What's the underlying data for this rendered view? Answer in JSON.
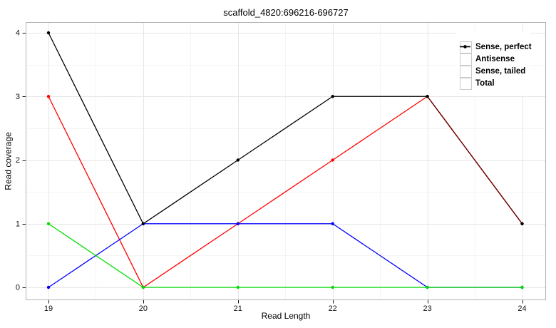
{
  "chart_data": {
    "type": "line",
    "title": "scaffold_4820:696216-696727",
    "xlabel": "Read Length",
    "ylabel": "Read coverage",
    "x": [
      19,
      20,
      21,
      22,
      23,
      24
    ],
    "series": [
      {
        "name": "Sense, perfect",
        "color": "#ff0000",
        "values": [
          3,
          0,
          1,
          2,
          3,
          1
        ]
      },
      {
        "name": "Antisense",
        "color": "#0000ff",
        "values": [
          0,
          1,
          1,
          1,
          0,
          0
        ]
      },
      {
        "name": "Sense, tailed",
        "color": "#00dd00",
        "values": [
          1,
          0,
          0,
          0,
          0,
          0
        ]
      },
      {
        "name": "Total",
        "color": "#000000",
        "values": [
          4,
          1,
          2,
          3,
          3,
          1
        ]
      }
    ],
    "xticks": [
      19,
      20,
      21,
      22,
      23,
      24
    ],
    "yticks": [
      0,
      1,
      2,
      3,
      4
    ],
    "xlim": [
      18.76,
      24.25
    ],
    "ylim": [
      -0.2,
      4.17
    ],
    "grid": true,
    "minor_grid": true,
    "legend_position": "top-right",
    "colors": {
      "background": "#ffffff",
      "grid_major": "#e6e6e6",
      "grid_minor": "#f4f4f4",
      "panel_border": "#b3b3b3",
      "tick": "#1a1a1a",
      "legend_key_border": "#cccccc",
      "overlap_mix_opacity": "0.4"
    }
  }
}
